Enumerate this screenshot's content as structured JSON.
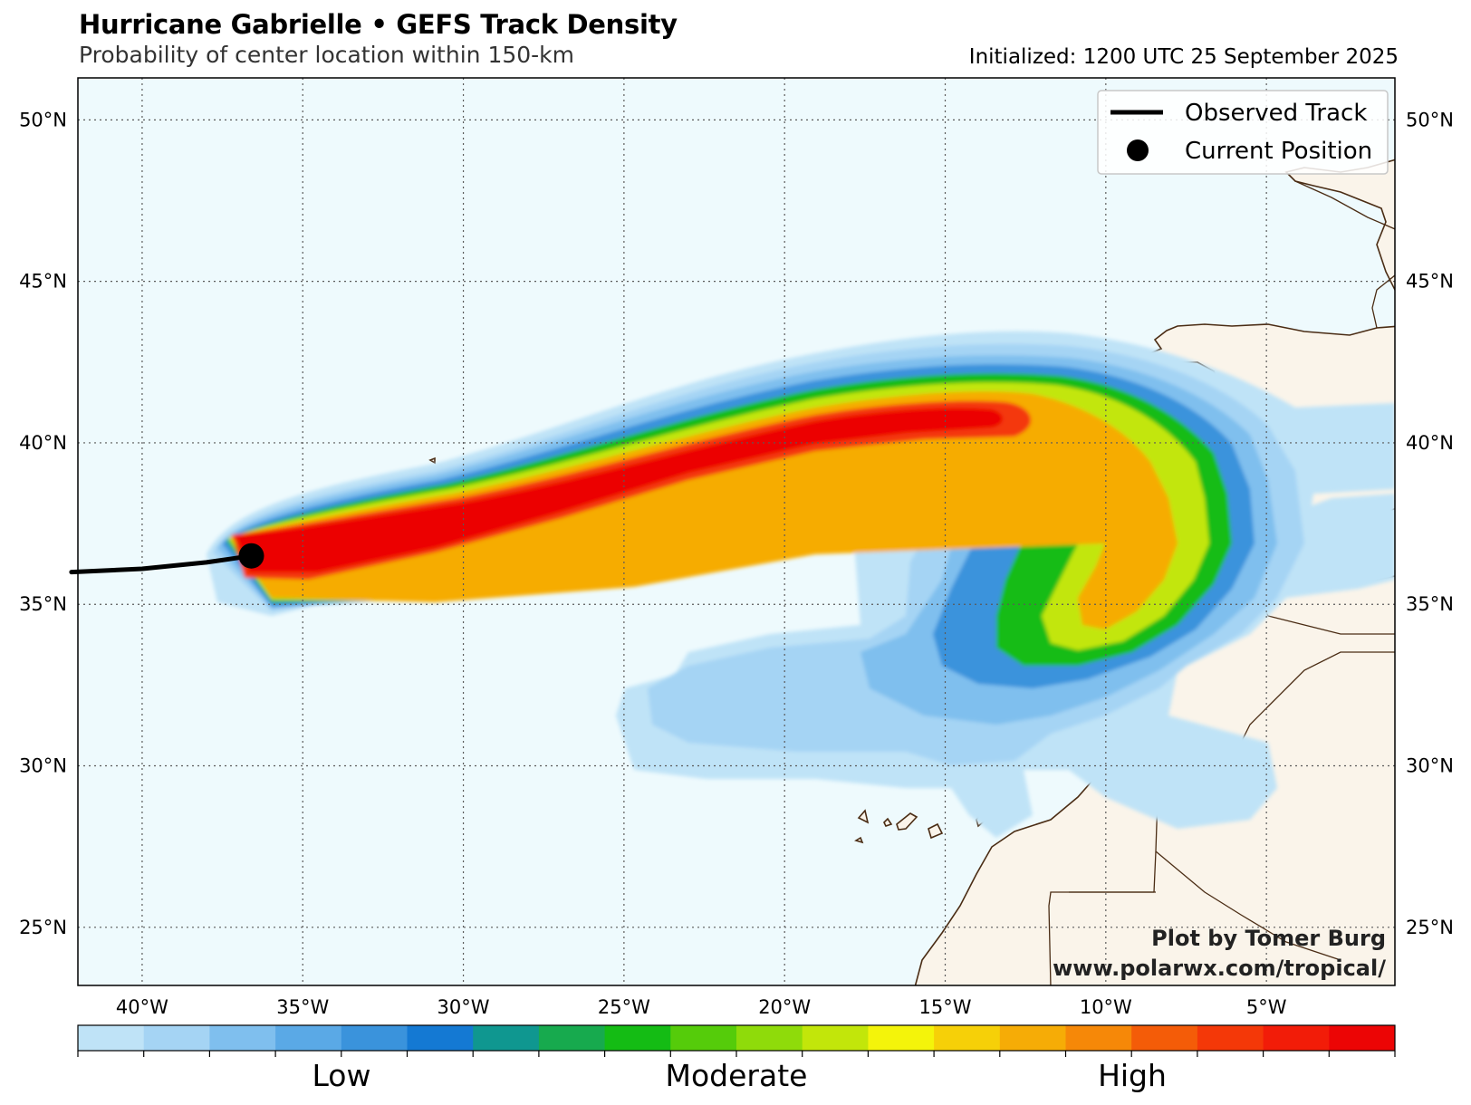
{
  "header": {
    "title": "Hurricane Gabrielle • GEFS Track Density",
    "subtitle": "Probability of center location within 150-km",
    "initialized": "Initialized: 1200 UTC 25 September 2025"
  },
  "map": {
    "lon_range": [
      -42,
      -1
    ],
    "lat_range": [
      23.2,
      51.3
    ],
    "lat_ticks": [
      "50°N",
      "45°N",
      "40°N",
      "35°N",
      "30°N",
      "25°N"
    ],
    "lat_tick_values": [
      50,
      45,
      40,
      35,
      30,
      25
    ],
    "lon_ticks": [
      "40°W",
      "35°W",
      "30°W",
      "25°W",
      "20°W",
      "15°W",
      "10°W",
      "5°W"
    ],
    "lon_tick_values": [
      -40,
      -35,
      -30,
      -25,
      -20,
      -15,
      -10,
      -5
    ],
    "ocean_color": "#eefafd",
    "land_color": "#faf4ea",
    "coast_color": "#4a2c14",
    "grid": "dotted"
  },
  "legend": {
    "observed_track": "Observed Track",
    "current_position": "Current Position",
    "placement": "upper-right"
  },
  "track": {
    "observed": [
      [
        -42.2,
        36.0
      ],
      [
        -40,
        36.1
      ],
      [
        -38,
        36.3
      ],
      [
        -36.6,
        36.5
      ]
    ],
    "current_position": [
      -36.6,
      36.5
    ]
  },
  "credit": {
    "line1": "Plot by Tomer Burg",
    "line2": "www.polarwx.com/tropical/"
  },
  "colorbar": {
    "colors": [
      "#bfe3f7",
      "#a5d4f4",
      "#7fbfee",
      "#5aa9e6",
      "#3a93dc",
      "#1479d3",
      "#0f9790",
      "#17aa4e",
      "#14bc14",
      "#55cc0a",
      "#8fdb0a",
      "#c2e60a",
      "#f4f40a",
      "#f6d008",
      "#f6ac06",
      "#f68808",
      "#f45c08",
      "#f43808",
      "#f21c08",
      "#ec0505"
    ],
    "labels": [
      "Low",
      "Moderate",
      "High"
    ]
  }
}
